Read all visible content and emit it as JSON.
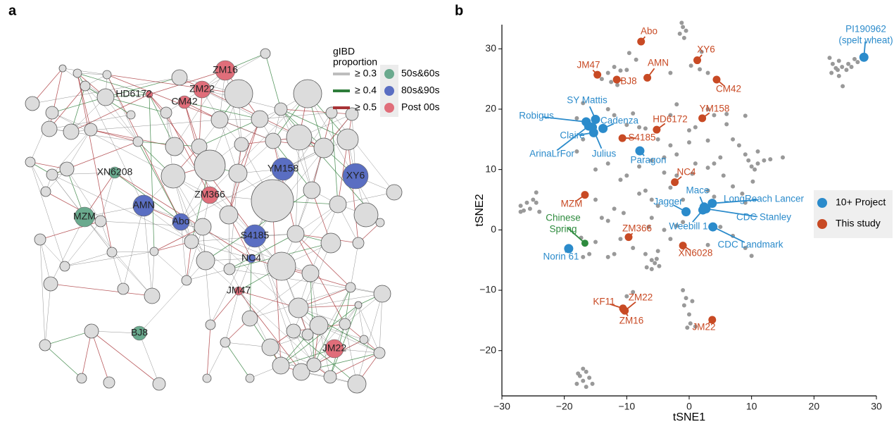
{
  "panel_labels": [
    "a",
    "b"
  ],
  "network": {
    "legend_title": [
      "gIBD",
      "proportion"
    ],
    "edge_legend": [
      {
        "label": "≥ 0.3",
        "color": "#bdbdbd"
      },
      {
        "label": "≥ 0.4",
        "color": "#2e7d3a"
      },
      {
        "label": "≥ 0.5",
        "color": "#a83236"
      }
    ],
    "group_legend": [
      {
        "label": "50s&60s",
        "color": "#6aaa8e"
      },
      {
        "label": "80s&90s",
        "color": "#5a6ec2"
      },
      {
        "label": "Post 00s",
        "color": "#e06e7a"
      }
    ],
    "nodes": [
      {
        "label": "ZM16",
        "group": 2
      },
      {
        "label": "HD6172",
        "group": 2
      },
      {
        "label": "ZM22",
        "group": 2
      },
      {
        "label": "CM42",
        "group": 2
      },
      {
        "label": "XN6208",
        "group": 0
      },
      {
        "label": "MZM",
        "group": 0
      },
      {
        "label": "AMN",
        "group": 1
      },
      {
        "label": "Abo",
        "group": 1
      },
      {
        "label": "YM158",
        "group": 1
      },
      {
        "label": "XY6",
        "group": 1
      },
      {
        "label": "ZM366",
        "group": 2
      },
      {
        "label": "S4185",
        "group": 1
      },
      {
        "label": "NC4",
        "group": 1
      },
      {
        "label": "JM47",
        "group": 2
      },
      {
        "label": "BJ8",
        "group": 0
      },
      {
        "label": "JM22",
        "group": 2
      }
    ]
  },
  "chart_data": {
    "type": "scatter",
    "x_label": "tSNE1",
    "y_label": "tSNE2",
    "xlim": [
      -30,
      30
    ],
    "ylim": [
      -27.5,
      34
    ],
    "xticks": [
      {
        "value": -30,
        "label": "−30"
      },
      {
        "value": -20,
        "label": "−20"
      },
      {
        "value": -10,
        "label": "−10"
      },
      0,
      10,
      20,
      30
    ],
    "yticks": [
      {
        "value": -20,
        "label": "−20"
      },
      {
        "value": -10,
        "label": "−10"
      },
      0,
      10,
      20,
      30
    ],
    "grid": false,
    "legend_position": "right",
    "series": [
      {
        "name": "10+ Project",
        "color": "#2b8bcb",
        "labels": [
          [
            "PI190962",
            "(spelt wheat)"
          ],
          "Robigus",
          "SY Mattis",
          "Cadenza",
          "Claire",
          "ArinaLrFor",
          "Julius",
          "Paragon",
          "Jagger",
          "Mace",
          "LongReach Lancer",
          "CDC Stanley",
          "Weebill 1",
          "CDC Landmark",
          "Norin 61"
        ],
        "x": [
          28,
          -16.5,
          -15,
          -13.8,
          -15.3,
          -16.1,
          -15.5,
          -7.9,
          -0.5,
          2.4,
          3.7,
          2.7,
          2.2,
          3.8,
          -19.3
        ],
        "y": [
          28.6,
          17.9,
          18.3,
          16.8,
          16.1,
          17.2,
          17,
          13.1,
          3,
          3.8,
          4.4,
          3.5,
          3.3,
          0.5,
          -3.1
        ]
      },
      {
        "name": "This study",
        "color": "#c84a24",
        "labels": [
          "Abo",
          "JM47",
          "BJ8",
          "AMN",
          "XY6",
          "CM42",
          "YM158",
          "HD6172",
          "S4185",
          "NC4",
          "MZM",
          "ZM366",
          "XN6028",
          "KF11",
          "ZM22",
          "ZM16",
          "JM22"
        ],
        "x": [
          -7.7,
          -14.7,
          -11.6,
          -6.7,
          1.3,
          4.4,
          2.1,
          -5.2,
          -10.7,
          -2.3,
          -16.7,
          -9.7,
          -1,
          -10.6,
          -10.3,
          -10.5,
          3.7
        ],
        "y": [
          31.2,
          25.7,
          24.9,
          25.2,
          28.1,
          24.9,
          18.5,
          16.6,
          15.2,
          7.9,
          5.8,
          -1.2,
          -2.6,
          -13,
          -13.4,
          -13.2,
          -14.9
        ]
      },
      {
        "color": "#2e8b3e",
        "labels": [
          [
            "Chinese",
            "Spring"
          ]
        ],
        "x": [
          -16.7
        ],
        "y": [
          -2.2
        ]
      },
      {
        "color": "#999999",
        "x": [
          -1.2,
          -1,
          -1.5,
          -0.5,
          -0.8,
          -9.6,
          -8.5,
          -12,
          -11,
          -13,
          -10,
          -14,
          -12.5,
          -11.5,
          2,
          0.3,
          1.7,
          -3,
          3,
          22.5,
          23,
          24,
          23.5,
          24.5,
          25.5,
          26.5,
          27,
          22.8,
          23.8,
          24,
          24.6,
          25.2,
          26,
          -17,
          -18,
          -17,
          -18,
          -13,
          -12,
          -9,
          -10,
          -8,
          -7,
          -5,
          -3,
          0,
          0,
          1,
          -3,
          -2,
          3,
          4,
          6,
          9,
          6,
          7,
          3,
          -6,
          -4,
          -2,
          -8,
          -10,
          -11,
          -13,
          -15,
          1,
          0.5,
          3,
          4,
          5.5,
          5,
          8,
          9,
          9.5,
          10,
          10.5,
          11,
          10.2,
          12,
          13,
          15,
          11,
          -2,
          -4,
          -7,
          -6,
          -8,
          -5,
          -3,
          3,
          4,
          7,
          8.5,
          9,
          -1,
          -24.5,
          -25,
          -26,
          -27,
          -25.5,
          -24,
          -26.5,
          -24.5,
          -27,
          -15,
          -14,
          -13,
          -12,
          -10.5,
          -6,
          -4,
          -6.5,
          -2,
          -1,
          -3,
          -5,
          -7,
          -9,
          -11,
          -15,
          -16,
          -17.3,
          -17,
          -13,
          -12,
          -6,
          -5.5,
          -6.8,
          -4.8,
          -5.2,
          -6,
          5,
          7,
          9,
          10,
          3,
          -9,
          -10,
          -1,
          -0.5,
          -0.8,
          0.5,
          0,
          0.2,
          1,
          -0.3,
          -17,
          -16.5,
          -17.5,
          -16,
          -17,
          -18,
          -16.5,
          -15.5,
          -17.8
        ],
        "y": [
          34.3,
          33.6,
          32.5,
          33,
          31.8,
          29.3,
          28.2,
          27,
          26.4,
          26,
          26.5,
          25,
          24.5,
          24,
          29.5,
          27.2,
          26.6,
          26,
          26,
          28.5,
          27.5,
          28,
          26.8,
          27,
          27.5,
          28.3,
          27.8,
          26,
          26.5,
          25.5,
          23.8,
          26.5,
          27,
          21,
          18.5,
          15,
          13,
          20,
          19,
          19.3,
          17.4,
          17,
          16.8,
          15,
          14,
          16.5,
          14.5,
          17,
          19,
          20.8,
          20,
          19,
          19.2,
          18.9,
          17.5,
          15,
          14.8,
          11.5,
          12,
          12.5,
          10.5,
          9,
          8.3,
          11,
          10,
          11,
          9.3,
          10.3,
          11,
          9,
          12,
          14,
          12.5,
          11.5,
          10.5,
          10,
          11,
          8,
          11.5,
          11.7,
          12,
          13,
          9,
          9.5,
          6.5,
          5,
          6,
          4,
          7,
          6.5,
          5.5,
          7.2,
          6,
          4.5,
          5,
          6.2,
          5,
          4.5,
          4,
          3.5,
          3,
          3.2,
          4.5,
          3,
          5,
          2,
          1.5,
          3.5,
          2.8,
          2,
          0,
          0.5,
          0.7,
          1.3,
          -1.5,
          -3.5,
          -4,
          -3,
          -1.5,
          -2,
          -4,
          -1.3,
          -4.5,
          -4.5,
          -4,
          -5,
          -5.5,
          -6.2,
          -6,
          -4.8,
          -6.5,
          0.5,
          -1,
          -3,
          -4.3,
          -2.5,
          -10.3,
          -11,
          -10,
          -11.3,
          -12.5,
          -11.8,
          -14,
          -15.5,
          -16,
          -16.2,
          -23,
          -23.5,
          -24.2,
          -24.5,
          -25,
          -25.5,
          -26,
          -25.5,
          -23.8
        ]
      }
    ]
  }
}
